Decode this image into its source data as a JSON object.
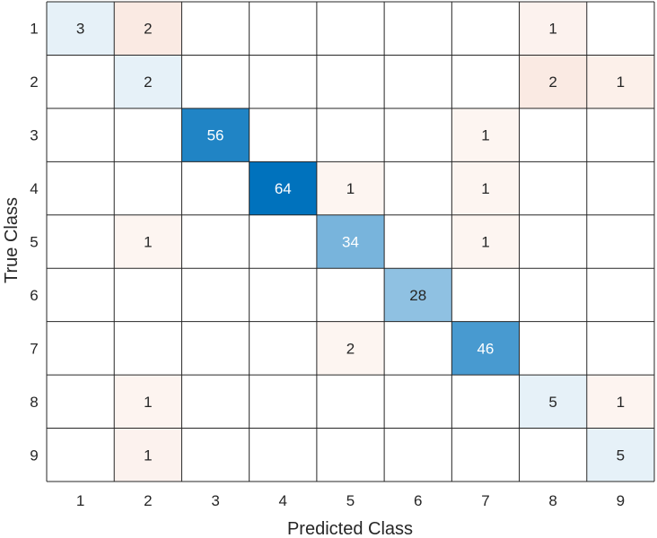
{
  "chart_data": {
    "type": "heatmap",
    "title": "",
    "xlabel": "Predicted Class",
    "ylabel": "True Class",
    "x_categories": [
      "1",
      "2",
      "3",
      "4",
      "5",
      "6",
      "7",
      "8",
      "9"
    ],
    "y_categories": [
      "1",
      "2",
      "3",
      "4",
      "5",
      "6",
      "7",
      "8",
      "9"
    ],
    "matrix": [
      [
        3,
        2,
        null,
        null,
        null,
        null,
        null,
        1,
        null
      ],
      [
        null,
        2,
        null,
        null,
        null,
        null,
        null,
        2,
        1
      ],
      [
        null,
        null,
        56,
        null,
        null,
        null,
        1,
        null,
        null
      ],
      [
        null,
        null,
        null,
        64,
        1,
        null,
        1,
        null,
        null
      ],
      [
        null,
        1,
        null,
        null,
        34,
        null,
        1,
        null,
        null
      ],
      [
        null,
        null,
        null,
        null,
        null,
        28,
        null,
        null,
        null
      ],
      [
        null,
        null,
        null,
        null,
        2,
        null,
        46,
        null,
        null
      ],
      [
        null,
        1,
        null,
        null,
        null,
        null,
        null,
        5,
        1
      ],
      [
        null,
        1,
        null,
        null,
        null,
        null,
        null,
        null,
        5
      ]
    ],
    "colors": {
      "diagonal": "#0072bd",
      "off_diagonal": "#d95319",
      "grid": "#262626",
      "background": "#ffffff"
    }
  }
}
